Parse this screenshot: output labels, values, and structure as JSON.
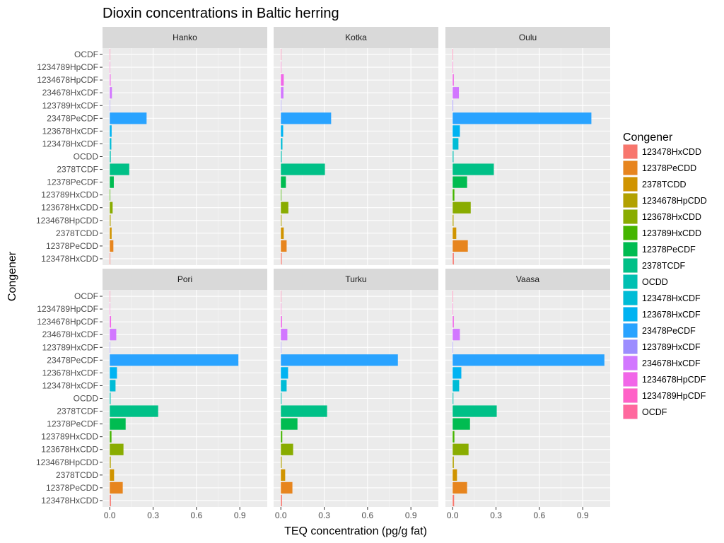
{
  "chart_data": {
    "type": "bar",
    "orientation": "horizontal",
    "faceted": true,
    "title": "Dioxin concentrations in Baltic herring",
    "xlabel": "TEQ concentration (pg/g fat)",
    "ylabel": "Congener",
    "xlim": [
      -0.05,
      1.09
    ],
    "x_ticks": [
      0.0,
      0.3,
      0.6,
      0.9
    ],
    "x_tick_labels": [
      "0.0",
      "0.3",
      "0.6",
      "0.9"
    ],
    "grid": true,
    "legend_position": "right",
    "legend_title": "Congener",
    "categories": [
      "OCDF",
      "1234789HpCDF",
      "1234678HpCDF",
      "234678HxCDF",
      "123789HxCDF",
      "23478PeCDF",
      "123678HxCDF",
      "123478HxCDF",
      "OCDD",
      "2378TCDF",
      "12378PeCDF",
      "123789HxCDD",
      "123678HxCDD",
      "1234678HpCDD",
      "2378TCDD",
      "12378PeCDD",
      "123478HxCDD"
    ],
    "legend_order": [
      "123478HxCDD",
      "12378PeCDD",
      "2378TCDD",
      "1234678HpCDD",
      "123678HxCDD",
      "123789HxCDD",
      "12378PeCDF",
      "2378TCDF",
      "OCDD",
      "123478HxCDF",
      "123678HxCDF",
      "23478PeCDF",
      "123789HxCDF",
      "234678HxCDF",
      "1234678HpCDF",
      "1234789HpCDF",
      "OCDF"
    ],
    "colors": {
      "123478HxCDD": "#F8766D",
      "12378PeCDD": "#E7851E",
      "2378TCDD": "#D09400",
      "1234678HpCDD": "#B2A100",
      "123678HxCDD": "#89AC00",
      "123789HxCDD": "#45B500",
      "12378PeCDF": "#00BC51",
      "2378TCDF": "#00C087",
      "OCDD": "#00C0B2",
      "123478HxCDF": "#00BCD6",
      "123678HxCDF": "#00B3F2",
      "23478PeCDF": "#29A3FF",
      "123789HxCDF": "#9C8DFF",
      "234678HxCDF": "#D277FF",
      "1234678HpCDF": "#F166E8",
      "1234789HpCDF": "#FF61C7",
      "OCDF": "#FF689E"
    },
    "facets": [
      {
        "name": "Hanko",
        "values": {
          "OCDF": 0.002,
          "1234789HpCDF": 0.001,
          "1234678HpCDF": 0.006,
          "234678HxCDF": 0.015,
          "123789HxCDF": 0.001,
          "23478PeCDF": 0.255,
          "123678HxCDF": 0.013,
          "123478HxCDF": 0.011,
          "OCDD": 0.007,
          "2378TCDF": 0.135,
          "12378PeCDF": 0.028,
          "123789HxCDD": 0.004,
          "123678HxCDD": 0.02,
          "1234678HpCDD": 0.006,
          "2378TCDD": 0.013,
          "12378PeCDD": 0.025,
          "123478HxCDD": 0.004
        }
      },
      {
        "name": "Kotka",
        "values": {
          "OCDF": 0.002,
          "1234789HpCDF": 0.001,
          "1234678HpCDF": 0.02,
          "234678HxCDF": 0.018,
          "123789HxCDF": 0.001,
          "23478PeCDF": 0.348,
          "123678HxCDF": 0.016,
          "123478HxCDF": 0.011,
          "OCDD": 0.006,
          "2378TCDF": 0.305,
          "12378PeCDF": 0.035,
          "123789HxCDD": 0.004,
          "123678HxCDD": 0.052,
          "1234678HpCDD": 0.005,
          "2378TCDD": 0.02,
          "12378PeCDD": 0.04,
          "123478HxCDD": 0.006
        }
      },
      {
        "name": "Oulu",
        "values": {
          "OCDF": 0.002,
          "1234789HpCDF": 0.001,
          "1234678HpCDF": 0.008,
          "234678HxCDF": 0.043,
          "123789HxCDF": 0.004,
          "23478PeCDF": 0.96,
          "123678HxCDF": 0.05,
          "123478HxCDF": 0.04,
          "OCDD": 0.006,
          "2378TCDF": 0.285,
          "12378PeCDF": 0.1,
          "123789HxCDD": 0.012,
          "123678HxCDD": 0.125,
          "1234678HpCDD": 0.006,
          "2378TCDD": 0.025,
          "12378PeCDD": 0.105,
          "123478HxCDD": 0.008
        }
      },
      {
        "name": "Pori",
        "values": {
          "OCDF": 0.002,
          "1234789HpCDF": 0.001,
          "1234678HpCDF": 0.009,
          "234678HxCDF": 0.045,
          "123789HxCDF": 0.002,
          "23478PeCDF": 0.89,
          "123678HxCDF": 0.05,
          "123478HxCDF": 0.04,
          "OCDD": 0.006,
          "2378TCDF": 0.335,
          "12378PeCDF": 0.11,
          "123789HxCDD": 0.012,
          "123678HxCDD": 0.095,
          "1234678HpCDD": 0.007,
          "2378TCDD": 0.03,
          "12378PeCDD": 0.09,
          "123478HxCDD": 0.008
        }
      },
      {
        "name": "Turku",
        "values": {
          "OCDF": 0.002,
          "1234789HpCDF": 0.001,
          "1234678HpCDF": 0.008,
          "234678HxCDF": 0.045,
          "123789HxCDF": 0.002,
          "23478PeCDF": 0.81,
          "123678HxCDF": 0.05,
          "123478HxCDF": 0.04,
          "OCDD": 0.005,
          "2378TCDF": 0.32,
          "12378PeCDF": 0.115,
          "123789HxCDD": 0.01,
          "123678HxCDD": 0.085,
          "1234678HpCDD": 0.006,
          "2378TCDD": 0.03,
          "12378PeCDD": 0.08,
          "123478HxCDD": 0.008
        }
      },
      {
        "name": "Vaasa",
        "values": {
          "OCDF": 0.002,
          "1234789HpCDF": 0.001,
          "1234678HpCDF": 0.008,
          "234678HxCDF": 0.05,
          "123789HxCDF": 0.002,
          "23478PeCDF": 1.05,
          "123678HxCDF": 0.06,
          "123478HxCDF": 0.045,
          "OCDD": 0.005,
          "2378TCDF": 0.305,
          "12378PeCDF": 0.12,
          "123789HxCDD": 0.012,
          "123678HxCDD": 0.11,
          "1234678HpCDD": 0.008,
          "2378TCDD": 0.03,
          "12378PeCDD": 0.1,
          "123478HxCDD": 0.01
        }
      }
    ]
  }
}
